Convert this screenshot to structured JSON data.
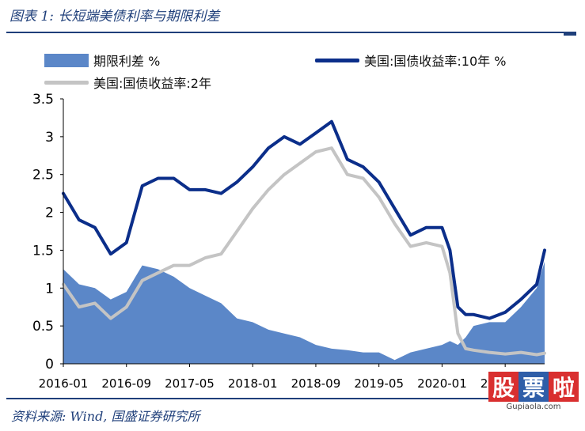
{
  "title": "图表 1:  长短端美债利率与期限利差",
  "source": "资料来源:  Wind,  国盛证券研究所",
  "watermark": {
    "chars": [
      "股",
      "票",
      "啦"
    ],
    "url": "Gupiaola.com"
  },
  "colors": {
    "spread": "#5b87c8",
    "ten_year": "#0b2e8a",
    "two_year": "#c4c4c4",
    "accent": "#1f3f7a",
    "wm_red": "#d92f2f",
    "wm_blue": "#2f5ea8"
  },
  "chart_data": {
    "type": "area",
    "x": [
      "2016-01",
      "2016-03",
      "2016-05",
      "2016-07",
      "2016-09",
      "2016-11",
      "2017-01",
      "2017-03",
      "2017-05",
      "2017-07",
      "2017-09",
      "2017-11",
      "2018-01",
      "2018-03",
      "2018-05",
      "2018-07",
      "2018-09",
      "2018-11",
      "2019-01",
      "2019-03",
      "2019-05",
      "2019-07",
      "2019-09",
      "2019-11",
      "2020-01",
      "2020-02",
      "2020-03",
      "2020-04",
      "2020-05",
      "2020-07",
      "2020-09",
      "2020-11",
      "2021-01",
      "2021-02"
    ],
    "series": [
      {
        "name": "期限利差 %",
        "kind": "area",
        "values": [
          1.25,
          1.05,
          1.0,
          0.85,
          0.95,
          1.3,
          1.25,
          1.15,
          1.0,
          0.9,
          0.8,
          0.6,
          0.55,
          0.45,
          0.4,
          0.35,
          0.25,
          0.2,
          0.18,
          0.15,
          0.15,
          0.05,
          0.15,
          0.2,
          0.25,
          0.3,
          0.25,
          0.35,
          0.5,
          0.55,
          0.55,
          0.75,
          1.0,
          1.35
        ]
      },
      {
        "name": "美国:国债收益率:10年 %",
        "kind": "line",
        "values": [
          2.25,
          1.9,
          1.8,
          1.45,
          1.6,
          2.35,
          2.45,
          2.45,
          2.3,
          2.3,
          2.25,
          2.4,
          2.6,
          2.85,
          3.0,
          2.9,
          3.05,
          3.2,
          2.7,
          2.6,
          2.4,
          2.05,
          1.7,
          1.8,
          1.8,
          1.5,
          0.75,
          0.65,
          0.65,
          0.6,
          0.68,
          0.85,
          1.05,
          1.5
        ]
      },
      {
        "name": "美国:国债收益率:2年",
        "kind": "line",
        "values": [
          1.05,
          0.75,
          0.8,
          0.6,
          0.75,
          1.1,
          1.2,
          1.3,
          1.3,
          1.4,
          1.45,
          1.75,
          2.05,
          2.3,
          2.5,
          2.65,
          2.8,
          2.85,
          2.5,
          2.45,
          2.2,
          1.85,
          1.55,
          1.6,
          1.55,
          1.2,
          0.4,
          0.2,
          0.18,
          0.15,
          0.13,
          0.15,
          0.12,
          0.14
        ]
      }
    ],
    "x_tick_labels": [
      "2016-01",
      "2016-09",
      "2017-05",
      "2018-01",
      "2018-09",
      "2019-05",
      "2020-01",
      "2020-09"
    ],
    "y_tick_labels": [
      "0",
      "0.5",
      "1",
      "1.5",
      "2",
      "2.5",
      "3",
      "3.5"
    ],
    "ylim": [
      0,
      3.5
    ],
    "grid": false,
    "legend_placement": "top"
  }
}
